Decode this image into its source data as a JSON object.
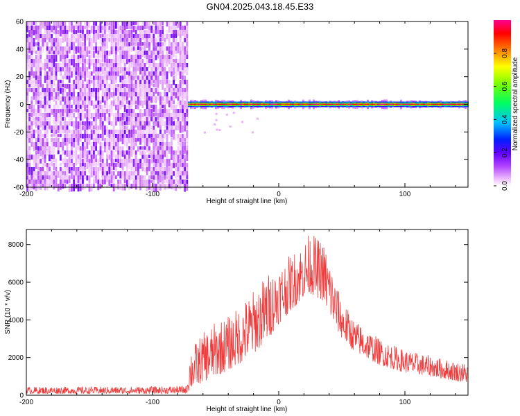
{
  "title": "GN04.2025.043.18.45.E33",
  "chart_data": [
    {
      "type": "heatmap",
      "xlabel": "Height of straight line (km)",
      "ylabel": "Frequency (Hz)",
      "xlim": [
        -200,
        150
      ],
      "ylim": [
        -60,
        60
      ],
      "xticks": [
        -200,
        -100,
        0,
        100
      ],
      "yticks": [
        -60,
        -40,
        -20,
        0,
        20,
        40,
        60
      ],
      "colorbar": {
        "label": "Normalized spectral amplitude",
        "range": [
          0.0,
          1.0
        ],
        "ticks": [
          0.0,
          0.2,
          0.4,
          0.6,
          0.8
        ],
        "colors": [
          "#ffffff",
          "#e080ff",
          "#8000ff",
          "#0000ff",
          "#00c8ff",
          "#00ff40",
          "#ffff00",
          "#ff8000",
          "#ff0000",
          "#ff0080"
        ]
      },
      "regions": [
        {
          "x": [
            -200,
            -72
          ],
          "y": [
            -60,
            60
          ],
          "pattern": "broadband noise",
          "amplitude_range": [
            0.02,
            0.15
          ]
        },
        {
          "x": [
            -72,
            150
          ],
          "y": [
            -2,
            2
          ],
          "pattern": "narrow line at 0 Hz",
          "amplitude_range": [
            0.3,
            1.0
          ]
        }
      ]
    },
    {
      "type": "line",
      "xlabel": "Height of straight line (km)",
      "ylabel": "SNR (10 * v/v)",
      "xlim": [
        -200,
        150
      ],
      "ylim": [
        0,
        8800
      ],
      "xticks": [
        -200,
        -100,
        0,
        100
      ],
      "yticks": [
        0,
        2000,
        4000,
        6000,
        8000
      ],
      "color": "#ef3b3b",
      "envelope": {
        "x": [
          -200,
          -150,
          -100,
          -73,
          -70,
          -60,
          -50,
          -40,
          -30,
          -20,
          -10,
          0,
          10,
          20,
          25,
          30,
          35,
          40,
          45,
          50,
          60,
          80,
          100,
          120,
          140,
          150
        ],
        "lower": [
          80,
          80,
          80,
          90,
          300,
          700,
          1000,
          1300,
          1700,
          2200,
          2800,
          3800,
          4500,
          5200,
          5400,
          5200,
          5000,
          4200,
          3600,
          3000,
          2300,
          1600,
          1200,
          1000,
          750,
          650
        ],
        "upper": [
          450,
          450,
          460,
          500,
          2500,
          3300,
          3900,
          4200,
          4800,
          5600,
          6400,
          6900,
          7500,
          8200,
          8700,
          8400,
          8200,
          7400,
          6000,
          5100,
          4000,
          3000,
          2400,
          2100,
          1800,
          1700
        ]
      }
    }
  ]
}
